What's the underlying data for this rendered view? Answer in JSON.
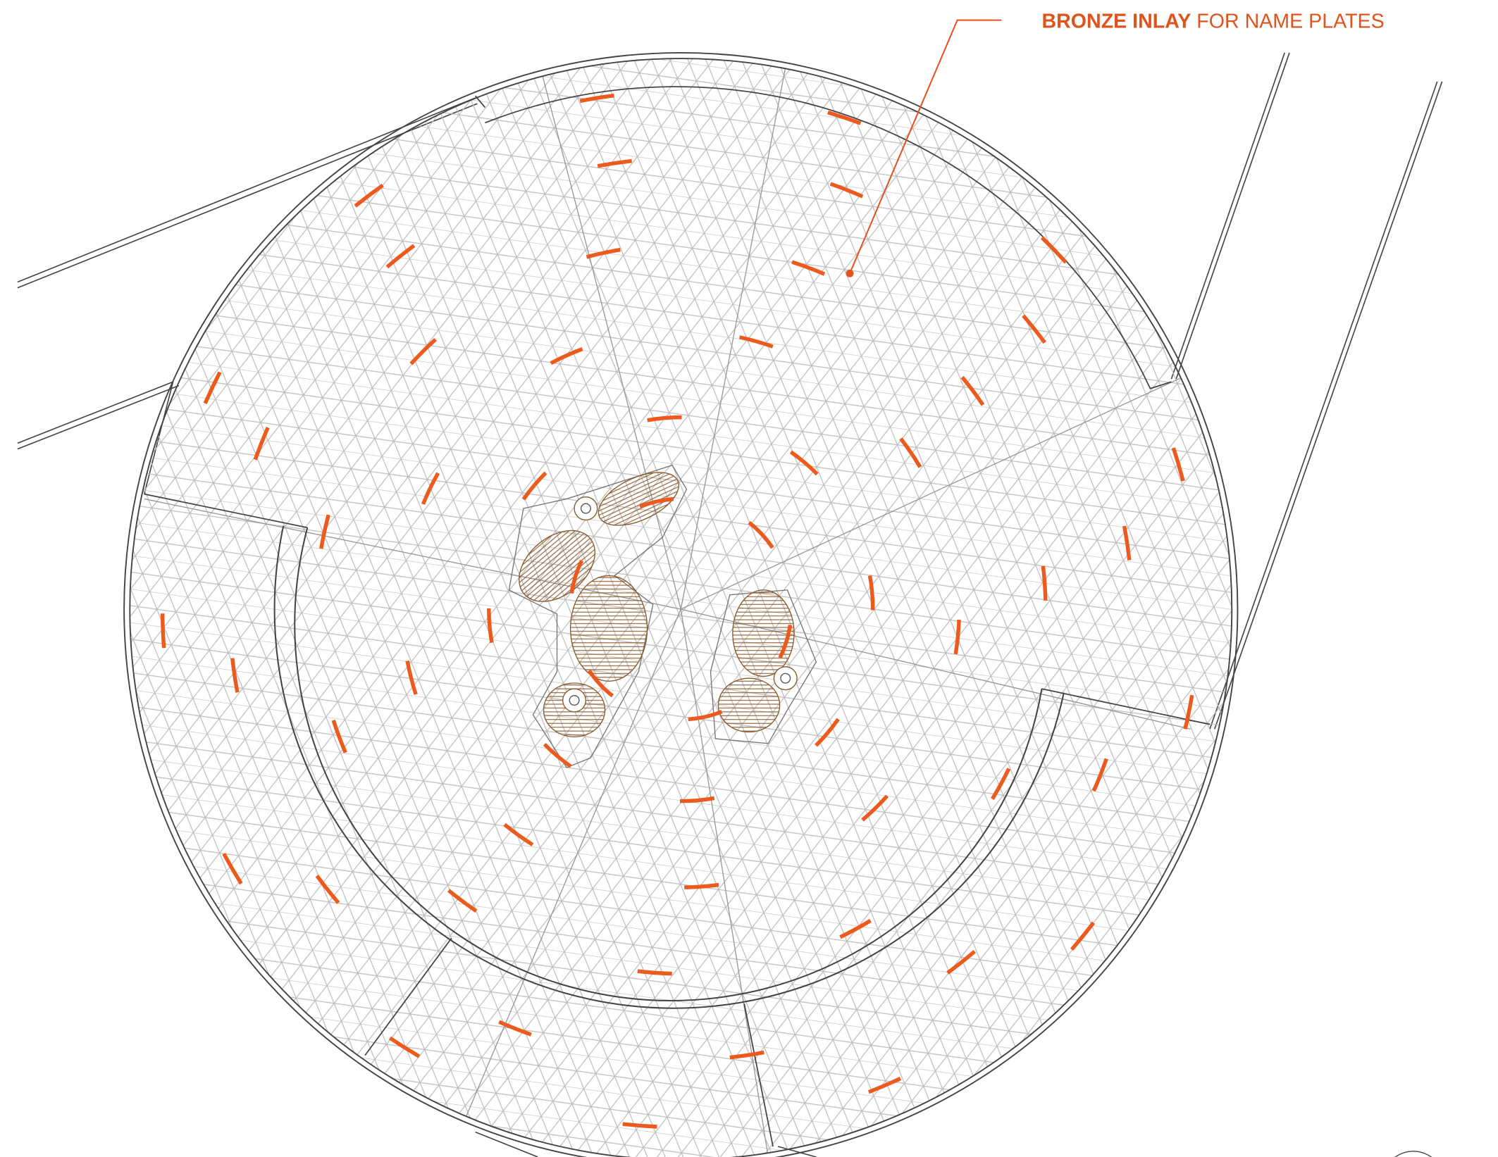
{
  "annotation": {
    "emphasis": "BRONZE INLAY",
    "text": "FOR NAME PLATES"
  }
}
